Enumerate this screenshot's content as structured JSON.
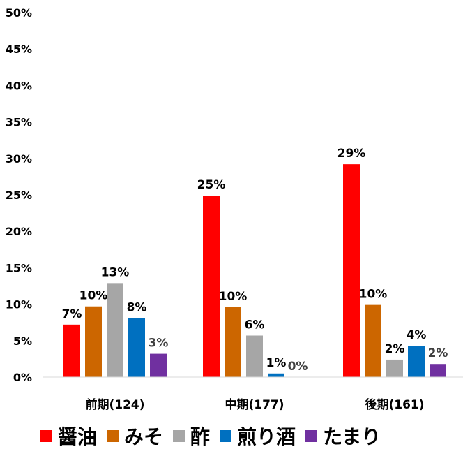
{
  "chart_data": {
    "type": "bar",
    "categories": [
      "前期(124)",
      "中期(177)",
      "後期(161)"
    ],
    "series": [
      {
        "name": "醤油",
        "color": "#ff0000",
        "values": [
          7.2,
          24.9,
          29.2
        ],
        "labels": [
          "7%",
          "25%",
          "29%"
        ]
      },
      {
        "name": "みそ",
        "color": "#cc6600",
        "values": [
          9.7,
          9.6,
          9.9
        ],
        "labels": [
          "10%",
          "10%",
          "10%"
        ]
      },
      {
        "name": "酢",
        "color": "#a6a6a6",
        "values": [
          12.9,
          5.7,
          2.4
        ],
        "labels": [
          "13%",
          "6%",
          "2%"
        ]
      },
      {
        "name": "煎り酒",
        "color": "#0070c0",
        "values": [
          8.1,
          0.5,
          4.3
        ],
        "labels": [
          "8%",
          "1%",
          "4%"
        ]
      },
      {
        "name": "たまり",
        "color": "#7030a0",
        "values": [
          3.2,
          0.0,
          1.8
        ],
        "labels": [
          "3%",
          "0%",
          "2%"
        ]
      }
    ],
    "yticks": [
      "0%",
      "5%",
      "10%",
      "15%",
      "20%",
      "25%",
      "30%",
      "35%",
      "40%",
      "45%",
      "50%"
    ],
    "ylim": [
      0,
      50
    ],
    "title": "",
    "xlabel": "",
    "ylabel": "",
    "grid": false,
    "legend": "bottom"
  }
}
